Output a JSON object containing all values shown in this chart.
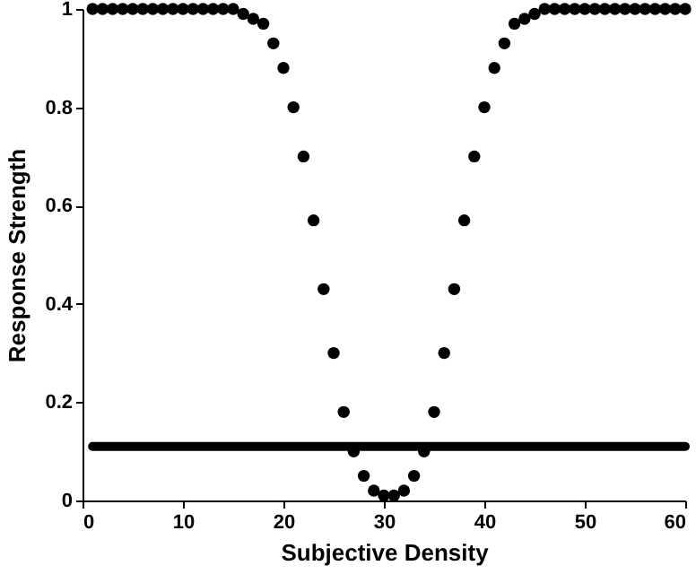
{
  "chart_data": {
    "type": "scatter",
    "xlabel": "Subjective Density",
    "ylabel": "Response Strength",
    "xlim": [
      0,
      60
    ],
    "xticks": [
      0,
      10,
      20,
      30,
      40,
      50,
      60
    ],
    "ylim": [
      0,
      1
    ],
    "yticks": [
      0,
      0.2,
      0.4,
      0.6,
      0.8,
      1
    ],
    "grid": false,
    "series": [
      {
        "color": "#000000",
        "marker": "circle",
        "x": [
          1,
          2,
          3,
          4,
          5,
          6,
          7,
          8,
          9,
          10,
          11,
          12,
          13,
          14,
          15,
          16,
          17,
          18,
          19,
          20,
          21,
          22,
          23,
          24,
          25,
          26,
          27,
          28,
          29,
          30,
          31,
          32,
          33,
          34,
          35,
          36,
          37,
          38,
          39,
          40,
          41,
          42,
          43,
          44,
          45,
          46,
          47,
          48,
          49,
          50,
          51,
          52,
          53,
          54,
          55,
          56,
          57,
          58,
          59,
          60
        ],
        "values": [
          1,
          1,
          1,
          1,
          1,
          1,
          1,
          1,
          1,
          1,
          1,
          1,
          1,
          1,
          1,
          0.99,
          0.98,
          0.97,
          0.93,
          0.88,
          0.8,
          0.7,
          0.57,
          0.43,
          0.3,
          0.18,
          0.1,
          0.05,
          0.02,
          0.01,
          0.01,
          0.02,
          0.05,
          0.1,
          0.18,
          0.3,
          0.43,
          0.57,
          0.7,
          0.8,
          0.88,
          0.93,
          0.97,
          0.98,
          0.99,
          1,
          1,
          1,
          1,
          1,
          1,
          1,
          1,
          1,
          1,
          1,
          1,
          1,
          1,
          1
        ]
      },
      {
        "type": "line",
        "color": "#000000",
        "x": [
          1,
          60
        ],
        "values": [
          0.11,
          0.11
        ],
        "line_style": "solid"
      }
    ]
  }
}
